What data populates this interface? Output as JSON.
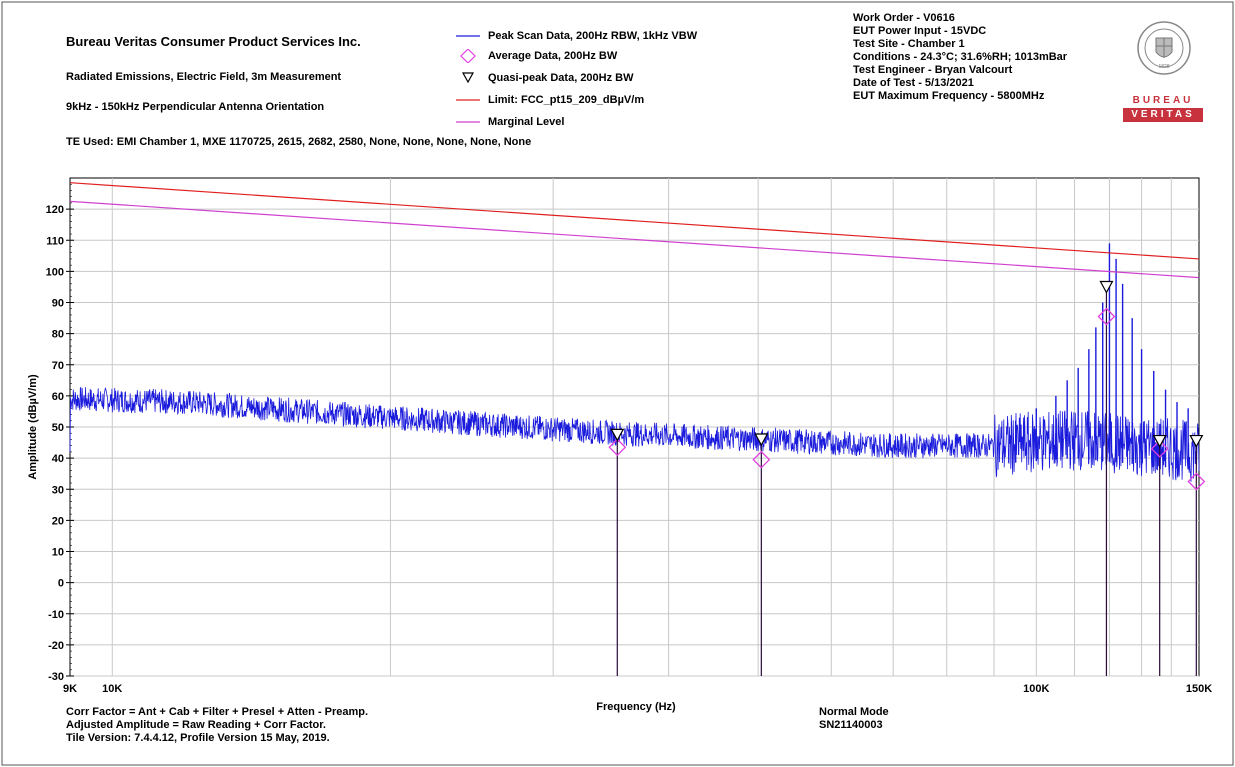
{
  "header": {
    "company": "Bureau Veritas Consumer Product Services Inc.",
    "measurement": "Radiated Emissions, Electric Field, 3m Measurement",
    "range": "9kHz - 150kHz Perpendicular Antenna Orientation",
    "te_used": "TE Used: EMI Chamber 1, MXE 1170725, 2615, 2682, 2580, None, None, None, None, None"
  },
  "legend": [
    {
      "label": "Peak Scan Data, 200Hz RBW, 1kHz VBW",
      "color": "#1a1adc",
      "symbol": "line-icon"
    },
    {
      "label": "Average Data, 200Hz BW",
      "color": "#e040e0",
      "symbol": "diamond-icon"
    },
    {
      "label": "Quasi-peak Data, 200Hz BW",
      "color": "#000000",
      "symbol": "triangle-down-icon"
    },
    {
      "label": "Limit: FCC_pt15_209_dBµV/m",
      "color": "#e02020",
      "symbol": "line-icon"
    },
    {
      "label": "Marginal Level",
      "color": "#d040d0",
      "symbol": "line-icon"
    }
  ],
  "info": [
    "Work Order - V0616",
    "EUT Power Input - 15VDC",
    "Test Site - Chamber 1",
    "Conditions - 24.3°C; 31.6%RH; 1013mBar",
    "Test Engineer - Bryan Valcourt",
    "Date of Test - 5/13/2021",
    "EUT Maximum Frequency - 5800MHz"
  ],
  "logo": {
    "top": "BUREAU",
    "bottom": "VERITAS",
    "year": "1828",
    "color": "#c8323c"
  },
  "footer": {
    "corr": "Corr Factor = Ant + Cab + Filter + Presel + Atten - Preamp.",
    "adjusted": "Adjusted Amplitude = Raw Reading + Corr Factor.",
    "version": "Tile Version: 7.4.4.12, Profile Version 15 May, 2019.",
    "mode": "Normal Mode",
    "serial": "SN21140003"
  },
  "chart_data": {
    "type": "line",
    "xlabel": "Frequency (Hz)",
    "ylabel": "Amplitude (dBµV/m)",
    "xscale": "log",
    "xlim": [
      9000,
      150000
    ],
    "ylim": [
      -30,
      130
    ],
    "yticks": [
      -30,
      -20,
      -10,
      0,
      10,
      20,
      30,
      40,
      50,
      60,
      70,
      80,
      90,
      100,
      110,
      120
    ],
    "ytick_labels": [
      "-30",
      "-20",
      "-10",
      "0",
      "10",
      "20",
      "30",
      "40",
      "50",
      "60",
      "70",
      "80",
      "90",
      "100",
      "110",
      "120"
    ],
    "xtick_labels": [
      {
        "value": 9000,
        "label": "9K"
      },
      {
        "value": 10000,
        "label": "10K"
      },
      {
        "value": 100000,
        "label": "100K"
      },
      {
        "value": 150000,
        "label": "150K"
      }
    ],
    "grid": true,
    "limit_line": {
      "name": "Limit: FCC_pt15_209_dBµV/m",
      "x": [
        9000,
        150000
      ],
      "y": [
        128.5,
        104.0
      ],
      "color": "#e02020"
    },
    "marginal_line": {
      "name": "Marginal Level",
      "x": [
        9000,
        150000
      ],
      "y": [
        122.5,
        98.0
      ],
      "color": "#d040d0"
    },
    "peak_scan": {
      "name": "Peak Scan Data, 200Hz RBW, 1kHz VBW",
      "color": "#1a1adc",
      "envelope": [
        {
          "f": 9000,
          "level": 59
        },
        {
          "f": 12000,
          "level": 58
        },
        {
          "f": 18000,
          "level": 54
        },
        {
          "f": 25000,
          "level": 51
        },
        {
          "f": 35000,
          "level": 48
        },
        {
          "f": 50000,
          "level": 46
        },
        {
          "f": 70000,
          "level": 44
        },
        {
          "f": 90000,
          "level": 44
        },
        {
          "f": 110000,
          "level": 46
        },
        {
          "f": 150000,
          "level": 42
        }
      ],
      "peaks": [
        {
          "f": 95000,
          "level": 52
        },
        {
          "f": 100000,
          "level": 56
        },
        {
          "f": 105000,
          "level": 60
        },
        {
          "f": 108000,
          "level": 65
        },
        {
          "f": 111000,
          "level": 69
        },
        {
          "f": 114000,
          "level": 75
        },
        {
          "f": 116000,
          "level": 82
        },
        {
          "f": 118000,
          "level": 90
        },
        {
          "f": 120000,
          "level": 109
        },
        {
          "f": 122000,
          "level": 104
        },
        {
          "f": 124000,
          "level": 96
        },
        {
          "f": 127000,
          "level": 85
        },
        {
          "f": 130000,
          "level": 75
        },
        {
          "f": 134000,
          "level": 68
        },
        {
          "f": 138000,
          "level": 62
        },
        {
          "f": 142000,
          "level": 58
        },
        {
          "f": 146000,
          "level": 56
        }
      ]
    },
    "average": {
      "name": "Average Data, 200Hz BW",
      "color": "#e040e0",
      "x": [
        35200,
        50400,
        119100,
        136000,
        149000
      ],
      "y": [
        43.5,
        39.5,
        85.5,
        43.0,
        32.5
      ]
    },
    "quasi_peak": {
      "name": "Quasi-peak Data, 200Hz BW",
      "color": "#000000",
      "x": [
        35200,
        50400,
        119100,
        136000,
        149000
      ],
      "y": [
        47.0,
        45.5,
        94.5,
        45.0,
        45.0
      ]
    }
  }
}
